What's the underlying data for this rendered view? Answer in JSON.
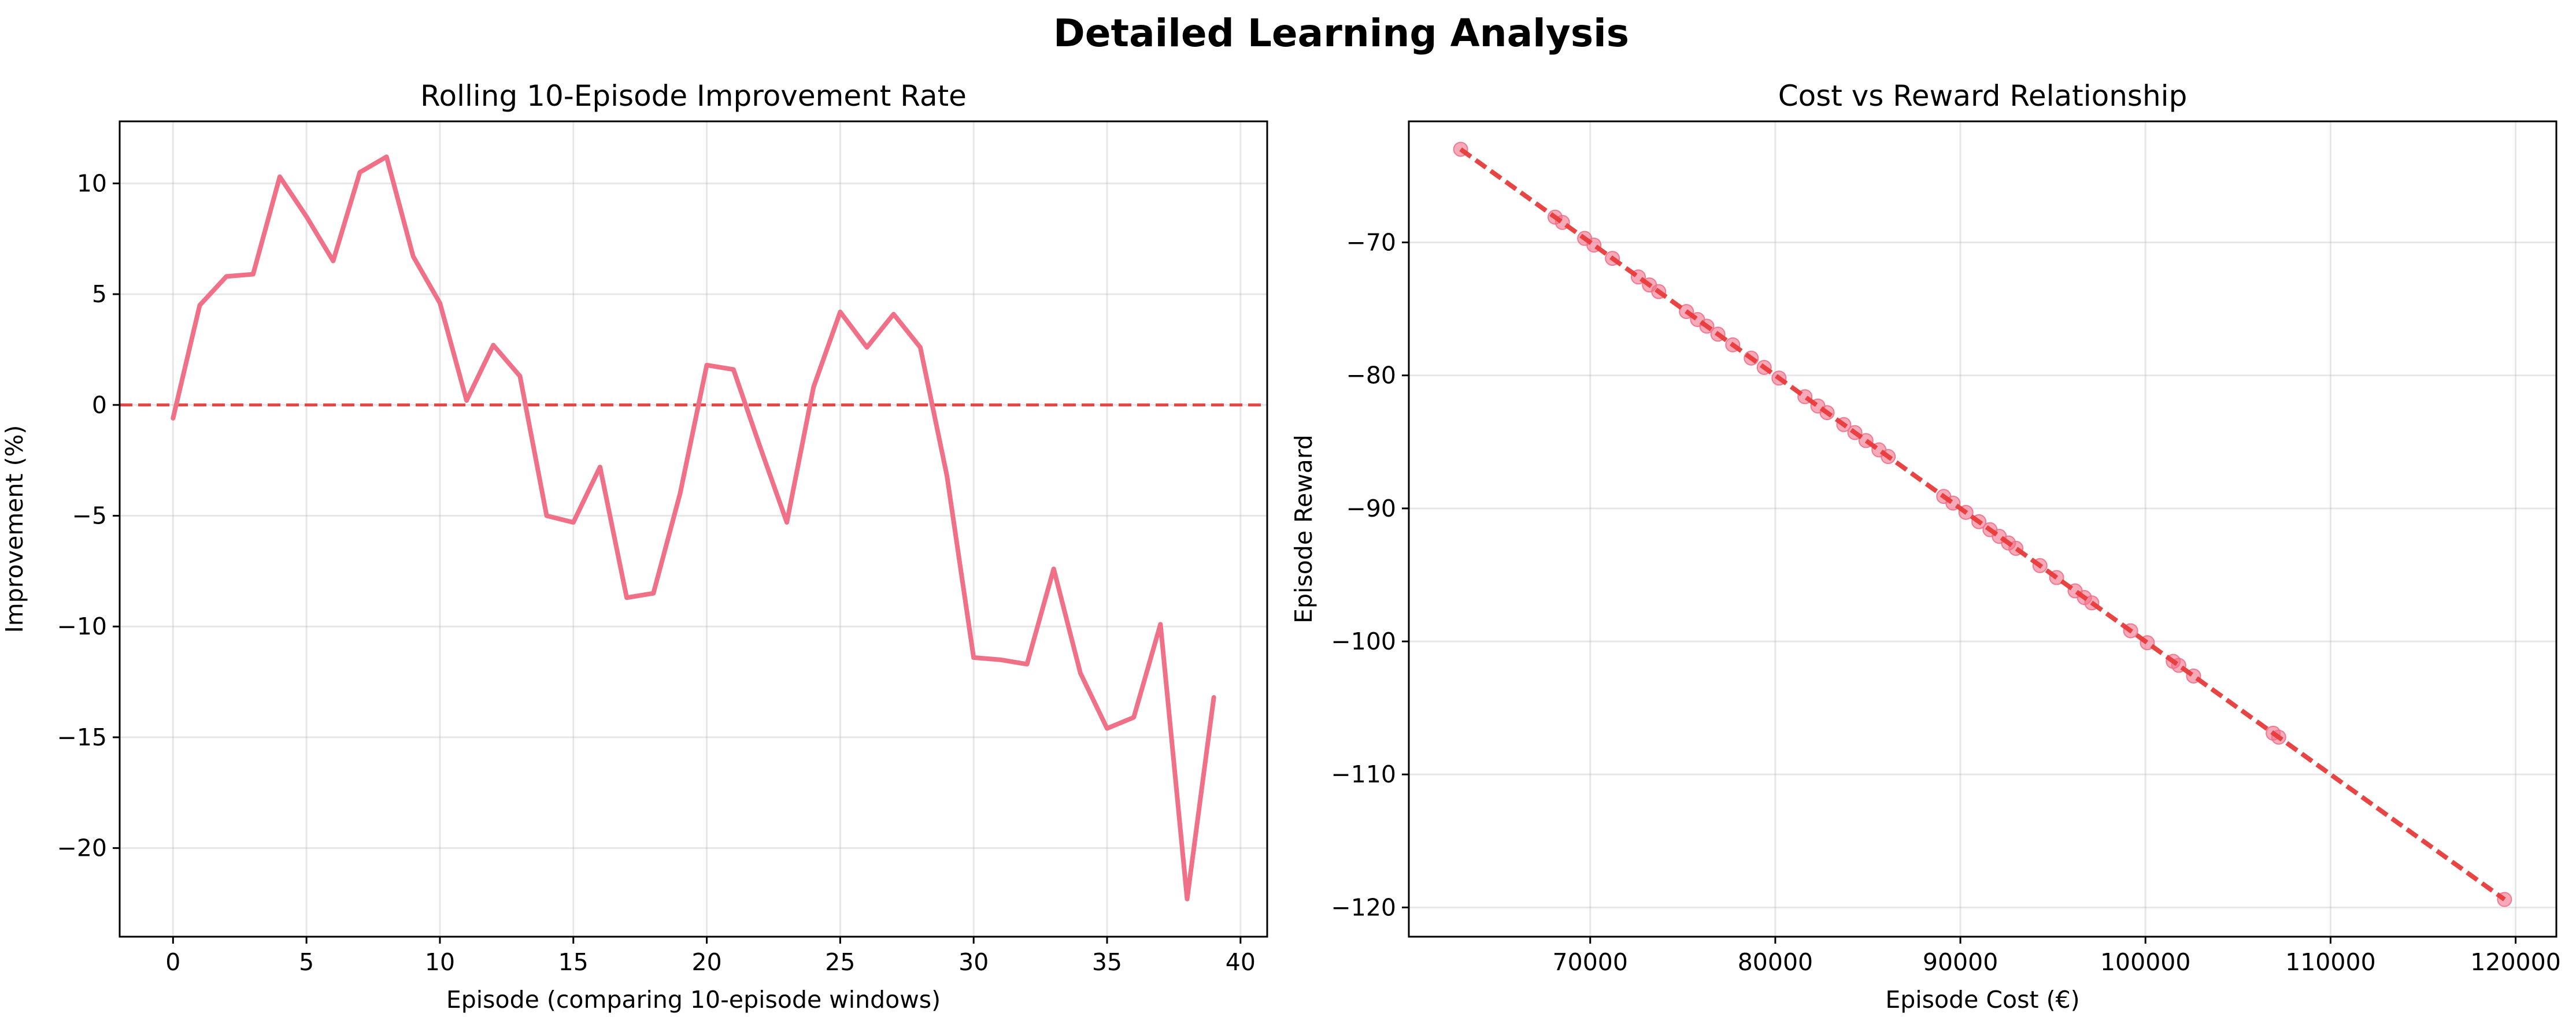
{
  "figure": {
    "title": "Detailed Learning Analysis"
  },
  "chart_data": [
    {
      "type": "line",
      "title": "Rolling 10-Episode Improvement Rate",
      "xlabel": "Episode (comparing 10-episode windows)",
      "ylabel": "Improvement (%)",
      "xlim": [
        -2,
        41
      ],
      "ylim": [
        -24,
        12.8
      ],
      "xticks": [
        0,
        5,
        10,
        15,
        20,
        25,
        30,
        35,
        40
      ],
      "xtick_labels": [
        "0",
        "5",
        "10",
        "15",
        "20",
        "25",
        "30",
        "35",
        "40"
      ],
      "yticks": [
        -20,
        -15,
        -10,
        -5,
        0,
        5,
        10
      ],
      "ytick_labels": [
        "−20",
        "−15",
        "−10",
        "−5",
        "0",
        "5",
        "10"
      ],
      "grid": true,
      "series": [
        {
          "color": "#f07088",
          "x": [
            0,
            1,
            2,
            3,
            4,
            5,
            6,
            7,
            8,
            9,
            10,
            11,
            12,
            13,
            14,
            15,
            16,
            17,
            18,
            19,
            20,
            21,
            22,
            23,
            24,
            25,
            26,
            27,
            28,
            29,
            30,
            31,
            32,
            33,
            34,
            35,
            36,
            37,
            38,
            39
          ],
          "y": [
            -0.6,
            4.5,
            5.8,
            5.9,
            10.3,
            8.5,
            6.5,
            10.5,
            11.2,
            6.7,
            4.6,
            0.2,
            2.7,
            1.3,
            -5.0,
            -5.3,
            -2.8,
            -8.7,
            -8.5,
            -4.0,
            1.8,
            1.6,
            -1.9,
            -5.3,
            0.8,
            4.2,
            2.6,
            4.1,
            2.6,
            -3.2,
            -11.4,
            -11.5,
            -11.7,
            -7.4,
            -12.1,
            -14.6,
            -14.1,
            -9.9,
            -22.3,
            -13.2
          ]
        }
      ],
      "reference_line": {
        "y": 0,
        "style": "dashed",
        "color": "#e83a3a"
      }
    },
    {
      "type": "scatter",
      "title": "Cost vs Reward Relationship",
      "xlabel": "Episode Cost (€)",
      "ylabel": "Episode Reward",
      "xlim": [
        60200,
        122200
      ],
      "ylim": [
        -122.2,
        -60.9
      ],
      "xticks": [
        70000,
        80000,
        90000,
        100000,
        110000,
        120000
      ],
      "xtick_labels": [
        "70000",
        "80000",
        "90000",
        "100000",
        "110000",
        "120000"
      ],
      "yticks": [
        -120,
        -110,
        -100,
        -90,
        -80,
        -70
      ],
      "ytick_labels": [
        "−120",
        "−110",
        "−100",
        "−90",
        "−80",
        "−70"
      ],
      "grid": true,
      "series": [
        {
          "color": "#f07088",
          "points": [
            [
              63000,
              -63.0
            ],
            [
              68100,
              -68.1
            ],
            [
              68500,
              -68.5
            ],
            [
              69700,
              -69.7
            ],
            [
              70200,
              -70.2
            ],
            [
              71200,
              -71.2
            ],
            [
              72600,
              -72.6
            ],
            [
              73200,
              -73.2
            ],
            [
              73700,
              -73.7
            ],
            [
              75200,
              -75.2
            ],
            [
              75800,
              -75.8
            ],
            [
              76300,
              -76.3
            ],
            [
              76900,
              -76.9
            ],
            [
              77700,
              -77.7
            ],
            [
              78700,
              -78.7
            ],
            [
              79400,
              -79.4
            ],
            [
              80200,
              -80.2
            ],
            [
              81600,
              -81.6
            ],
            [
              82300,
              -82.3
            ],
            [
              82800,
              -82.8
            ],
            [
              83700,
              -83.7
            ],
            [
              84300,
              -84.3
            ],
            [
              84900,
              -84.9
            ],
            [
              85600,
              -85.6
            ],
            [
              86100,
              -86.1
            ],
            [
              89100,
              -89.1
            ],
            [
              89600,
              -89.6
            ],
            [
              90300,
              -90.3
            ],
            [
              91000,
              -91.0
            ],
            [
              91600,
              -91.6
            ],
            [
              92100,
              -92.1
            ],
            [
              92600,
              -92.6
            ],
            [
              93000,
              -93.0
            ],
            [
              94300,
              -94.3
            ],
            [
              95200,
              -95.2
            ],
            [
              96200,
              -96.2
            ],
            [
              96700,
              -96.7
            ],
            [
              97100,
              -97.1
            ],
            [
              99200,
              -99.2
            ],
            [
              100100,
              -100.1
            ],
            [
              101500,
              -101.5
            ],
            [
              101800,
              -101.8
            ],
            [
              102600,
              -102.6
            ],
            [
              106900,
              -106.9
            ],
            [
              107200,
              -107.2
            ],
            [
              119400,
              -119.4
            ]
          ]
        }
      ],
      "trend_line": {
        "x": [
          63000,
          119400
        ],
        "y": [
          -63.0,
          -119.4
        ],
        "style": "dashed",
        "color": "#e83a3a"
      }
    }
  ]
}
